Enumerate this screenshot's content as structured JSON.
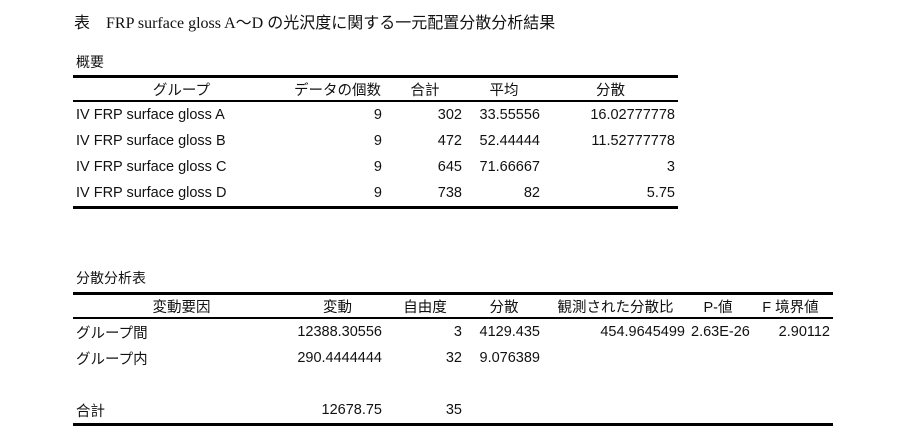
{
  "title": "表　FRP surface gloss A～D の光沢度に関する一元配置分散分析結果",
  "summary": {
    "label": "概要",
    "headers": [
      "グループ",
      "データの個数",
      "合計",
      "平均",
      "分散"
    ],
    "rows": [
      [
        "IV FRP surface gloss A",
        "9",
        "302",
        "33.55556",
        "16.02777778"
      ],
      [
        "IV FRP surface gloss B",
        "9",
        "472",
        "52.44444",
        "11.52777778"
      ],
      [
        "IV FRP surface gloss C",
        "9",
        "645",
        "71.66667",
        "3"
      ],
      [
        "IV FRP surface gloss D",
        "9",
        "738",
        "82",
        "5.75"
      ]
    ]
  },
  "anova": {
    "label": "分散分析表",
    "headers": [
      "変動要因",
      "変動",
      "自由度",
      "分散",
      "観測された分散比",
      "P-値",
      "F 境界値"
    ],
    "rows": [
      [
        "グループ間",
        "12388.30556",
        "3",
        "4129.435",
        "454.9645499",
        "2.63E-26",
        "2.90112"
      ],
      [
        "グループ内",
        "290.4444444",
        "32",
        "9.076389",
        "",
        "",
        ""
      ],
      [
        "",
        "",
        "",
        "",
        "",
        "",
        ""
      ],
      [
        "合計",
        "12678.75",
        "35",
        "",
        "",
        "",
        ""
      ]
    ]
  }
}
